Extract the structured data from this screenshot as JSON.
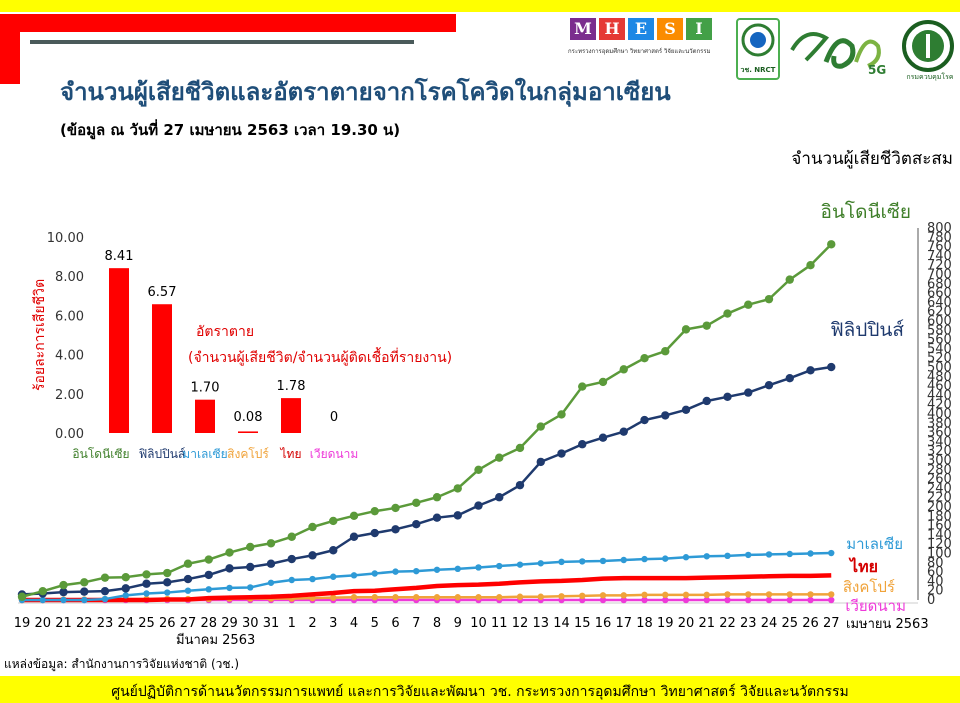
{
  "header": {
    "title": "จำนวนผู้เสียชีวิตและอัตราตายจากโรคโควิดในกลุ่มอาเซียน",
    "subtitle": "(ข้อมูล ณ วันที่ 27 เมษายน 2563 เวลา 19.30 น)",
    "logo_letters": [
      "M",
      "H",
      "E",
      "S",
      "I"
    ],
    "logo_colors": [
      "#7b2d8e",
      "#e53935",
      "#1e88e5",
      "#fb8c00",
      "#43a047"
    ],
    "logo_caption": "กระทรวงการอุดมศึกษา วิทยาศาสตร์ วิจัยและนวัตกรรม",
    "nrct_label": "วช. NRCT",
    "anniv_label": "5G",
    "dmsc_label": "กรมควบคุมโรค"
  },
  "footer": {
    "text": "ศูนย์ปฏิบัติการด้านนวัตกรรมการแพทย์ และการวิจัยและพัฒนา วช.   กระทรวงการอุดมศึกษา วิทยาศาสตร์ วิจัยและนวัตกรรม",
    "source": "แหล่งข้อมูล: สำนักงานการวิจัยแห่งชาติ (วช.)"
  },
  "chart_data": [
    {
      "type": "line",
      "title": "จำนวนผู้เสียชีวิตสะสม",
      "x": [
        "19",
        "20",
        "21",
        "22",
        "23",
        "24",
        "25",
        "26",
        "27",
        "28",
        "29",
        "30",
        "31",
        "1",
        "2",
        "3",
        "4",
        "5",
        "6",
        "7",
        "8",
        "9",
        "10",
        "11",
        "12",
        "13",
        "14",
        "15",
        "16",
        "17",
        "18",
        "19",
        "20",
        "21",
        "22",
        "23",
        "24",
        "25",
        "26",
        "27"
      ],
      "x_groups": [
        {
          "label": "มีนาคม 2563",
          "start": 0
        },
        {
          "label": "เมษายน 2563",
          "start": 13
        }
      ],
      "ylim": [
        0,
        800
      ],
      "yticks": [
        0,
        20,
        40,
        60,
        80,
        100,
        120,
        140,
        160,
        180,
        200,
        220,
        240,
        260,
        280,
        300,
        320,
        340,
        360,
        380,
        400,
        420,
        440,
        460,
        480,
        500,
        520,
        540,
        560,
        580,
        600,
        620,
        640,
        660,
        680,
        700,
        720,
        740,
        760,
        780,
        800
      ],
      "series": [
        {
          "name": "อินโดนีเซีย",
          "color": "#5b9a3a",
          "markers": true,
          "label_color": "#3f7f2a",
          "values": [
            7,
            19,
            32,
            38,
            48,
            49,
            55,
            58,
            78,
            87,
            102,
            114,
            122,
            136,
            157,
            170,
            181,
            191,
            198,
            209,
            221,
            240,
            280,
            306,
            327,
            373,
            399,
            459,
            469,
            496,
            520,
            535,
            582,
            590,
            616,
            635,
            647,
            689,
            720,
            765
          ]
        },
        {
          "name": "ฟิลิปปินส์",
          "color": "#1f3a6e",
          "markers": true,
          "label_color": "#1f3a6e",
          "values": [
            12,
            14,
            17,
            18,
            19,
            25,
            35,
            38,
            45,
            54,
            68,
            71,
            78,
            88,
            96,
            107,
            136,
            144,
            152,
            163,
            177,
            182,
            203,
            221,
            247,
            297,
            315,
            335,
            349,
            362,
            387,
            397,
            409,
            428,
            437,
            446,
            462,
            477,
            494,
            501
          ]
        },
        {
          "name": "มาเลเซีย",
          "color": "#2e9ad6",
          "markers": true,
          "label_color": "#2e9ad6",
          "values": [
            0,
            0,
            0,
            0,
            2,
            10,
            14,
            16,
            20,
            23,
            26,
            27,
            37,
            43,
            45,
            50,
            53,
            57,
            61,
            62,
            65,
            67,
            70,
            73,
            76,
            79,
            82,
            83,
            84,
            86,
            88,
            89,
            92,
            94,
            95,
            97,
            98,
            99,
            100,
            101
          ]
        },
        {
          "name": "ไทย",
          "color": "#ff0000",
          "markers": false,
          "label_color": "#d40000",
          "values": [
            0,
            0,
            0,
            0,
            0,
            0,
            0,
            1,
            1,
            4,
            5,
            6,
            7,
            9,
            12,
            15,
            19,
            20,
            23,
            26,
            30,
            32,
            33,
            35,
            38,
            40,
            41,
            43,
            46,
            47,
            47,
            47,
            47,
            48,
            49,
            50,
            51,
            52,
            52,
            53
          ]
        },
        {
          "name": "สิงคโปร์",
          "color": "#f0a33a",
          "markers": true,
          "label_color": "#f0a33a",
          "values": [
            0,
            0,
            1,
            1,
            2,
            2,
            2,
            2,
            2,
            2,
            3,
            3,
            3,
            3,
            4,
            5,
            6,
            6,
            6,
            6,
            6,
            6,
            6,
            6,
            7,
            7,
            8,
            9,
            10,
            10,
            11,
            11,
            11,
            11,
            12,
            12,
            12,
            12,
            12,
            12
          ]
        },
        {
          "name": "เวียดนาม",
          "color": "#ee3ad9",
          "markers": true,
          "label_color": "#ee3ad9",
          "values": [
            0,
            0,
            0,
            0,
            0,
            0,
            0,
            0,
            0,
            0,
            0,
            0,
            0,
            0,
            0,
            0,
            0,
            0,
            0,
            0,
            0,
            0,
            0,
            0,
            0,
            0,
            0,
            0,
            0,
            0,
            0,
            0,
            0,
            0,
            0,
            0,
            0,
            0,
            0,
            0
          ]
        }
      ],
      "grid": false,
      "legend": "end-of-line labels"
    },
    {
      "type": "bar",
      "ylabel": "ร้อยละการเสียชีวิต",
      "ylim": [
        0,
        10
      ],
      "yticks": [
        "0.00",
        "2.00",
        "4.00",
        "6.00",
        "8.00",
        "10.00"
      ],
      "categories": [
        "อินโดนีเซีย",
        "ฟิลิปปินส์",
        "มาเลเซีย",
        "สิงคโปร์",
        "ไทย",
        "เวียดนาม"
      ],
      "category_colors": [
        "#3f7f2a",
        "#1f3a6e",
        "#2e9ad6",
        "#f0a33a",
        "#d40000",
        "#ee3ad9"
      ],
      "values": [
        8.41,
        6.57,
        1.7,
        0.08,
        1.78,
        0
      ],
      "value_labels": [
        "8.41",
        "6.57",
        "1.70",
        "0.08",
        "1.78",
        "0"
      ],
      "bar_color": "#ff0000",
      "annotation_line1": "อัตราตาย",
      "annotation_line2": "(จำนวนผู้เสียชีวิต/จำนวนผู้ติดเชื้อที่รายงาน)"
    }
  ]
}
